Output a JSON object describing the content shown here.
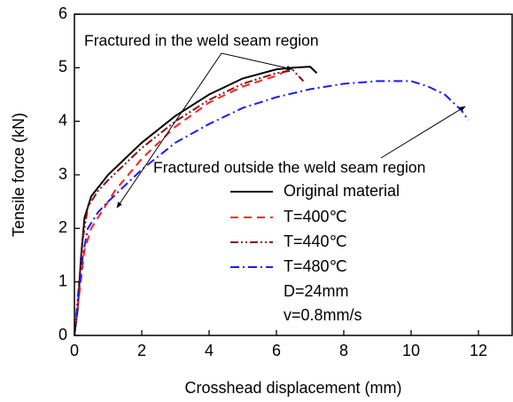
{
  "chart_data": {
    "type": "line",
    "x_label": "Crosshead displacement (mm)",
    "y_label": "Tensile force (kN)",
    "xlim": [
      0,
      13
    ],
    "ylim": [
      0,
      6
    ],
    "xticks": [
      0,
      2,
      4,
      6,
      8,
      10,
      12
    ],
    "yticks": [
      0,
      1,
      2,
      3,
      4,
      5,
      6
    ],
    "series": [
      {
        "name": "Original material",
        "color": "#000000",
        "dash": "solid",
        "x": [
          0,
          0.1,
          0.2,
          0.3,
          0.5,
          1,
          2,
          3,
          4,
          5,
          6,
          6.5,
          7,
          7.2
        ],
        "values": [
          0,
          0.5,
          1.5,
          2.2,
          2.6,
          3.0,
          3.6,
          4.1,
          4.5,
          4.8,
          4.97,
          5.0,
          5.02,
          4.9
        ]
      },
      {
        "name": "T=400℃",
        "color": "#ff2020",
        "dash": "dash",
        "x": [
          0,
          0.15,
          0.3,
          0.5,
          0.8,
          1.2,
          2,
          3,
          4,
          5,
          6,
          6.4
        ],
        "values": [
          0,
          0.8,
          1.6,
          2.0,
          2.3,
          2.7,
          3.3,
          3.9,
          4.35,
          4.65,
          4.85,
          4.98
        ]
      },
      {
        "name": "T=440℃",
        "color": "#8b0a0a",
        "dash": "dashdotdot",
        "x": [
          0,
          0.1,
          0.25,
          0.4,
          0.7,
          1,
          2,
          3,
          4,
          5,
          6,
          6.5,
          6.8
        ],
        "values": [
          0,
          0.7,
          1.8,
          2.4,
          2.7,
          2.9,
          3.5,
          4.0,
          4.4,
          4.7,
          4.9,
          4.95,
          4.75
        ]
      },
      {
        "name": "T=480℃",
        "color": "#1a1aff",
        "dash": "dashdot",
        "x": [
          0,
          0.1,
          0.25,
          0.4,
          0.7,
          1,
          2,
          3,
          4,
          5,
          6,
          7,
          8,
          9,
          10,
          10.5,
          11,
          11.5,
          11.7
        ],
        "values": [
          0,
          0.6,
          1.5,
          2.0,
          2.3,
          2.5,
          3.1,
          3.6,
          3.95,
          4.25,
          4.45,
          4.6,
          4.7,
          4.75,
          4.75,
          4.65,
          4.5,
          4.2,
          4.02
        ]
      }
    ],
    "notes": [
      "D=24mm",
      "v=0.8mm/s"
    ],
    "annotations": [
      "Fractured in the weld seam region",
      "Fractured outside the weld seam region"
    ]
  }
}
